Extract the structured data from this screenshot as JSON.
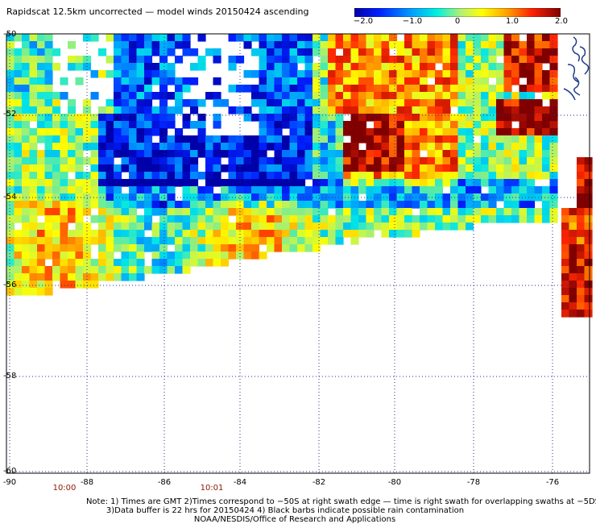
{
  "title": "Rapidscat 12.5km uncorrected — model winds 20150424 ascending",
  "colorbar": {
    "ticks": [
      "−2.0",
      "−1.0",
      "0",
      "1.0",
      "2.0"
    ],
    "range": [
      -2.0,
      2.0
    ]
  },
  "latitude_labels": [
    "-50",
    "-52",
    "-54",
    "-56",
    "-58",
    "-60"
  ],
  "longitude_labels": [
    "-90",
    "-88",
    "-86",
    "-84",
    "-82",
    "-80",
    "-78",
    "-76"
  ],
  "time_labels": [
    "10:00",
    "10:01"
  ],
  "notes": {
    "line1": "Note: 1) Times are GMT 2)Times correspond to −50S at right swath edge — time is right swath for overlapping swaths at −5DS",
    "line2": "3)Data buffer is 22 hrs for 20150424 4) Black barbs indicate possible rain contamination",
    "line3": "NOAA/NESDIS/Office of Research and Applications"
  },
  "colors": {
    "land": "#1f3a8a",
    "grid": "#2b2b8f",
    "time_label": "#8b1a00"
  }
}
